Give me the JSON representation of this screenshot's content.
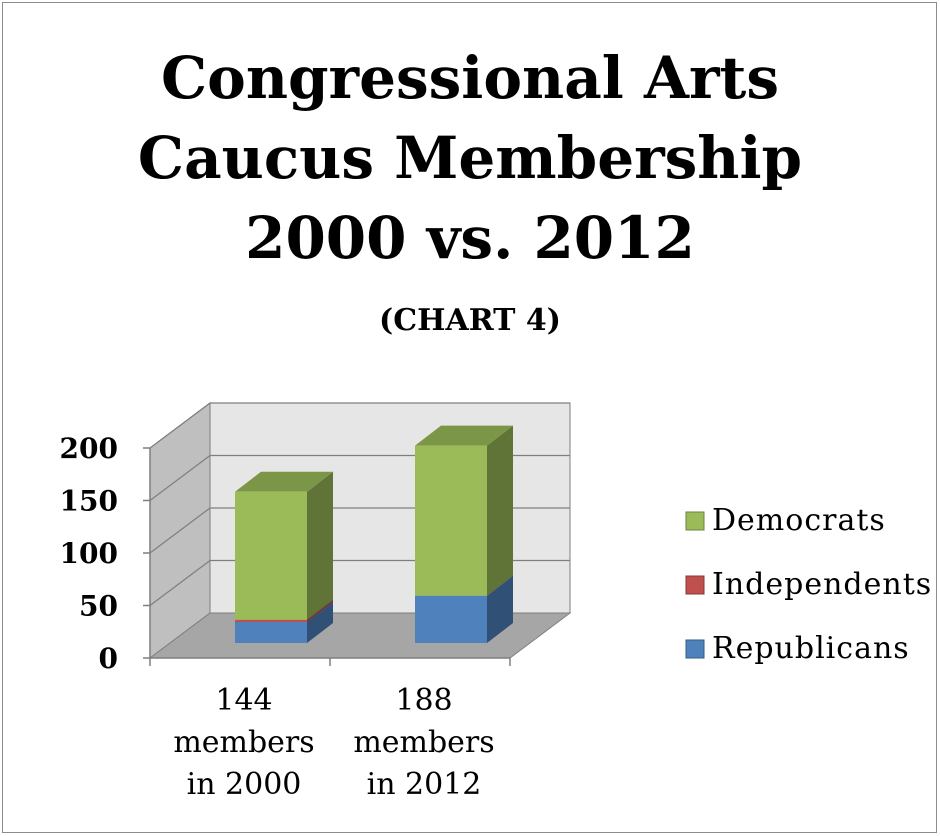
{
  "chart_data": {
    "type": "bar",
    "stacked": true,
    "three_d": true,
    "title_lines": [
      "Congressional Arts",
      "Caucus Membership",
      "2000 vs. 2012"
    ],
    "subtitle": "(CHART 4)",
    "categories": [
      [
        "144",
        "members",
        "in 2000"
      ],
      [
        "188",
        "members",
        "in 2012"
      ]
    ],
    "series": [
      {
        "name": "Republicans",
        "values": [
          20,
          45
        ],
        "color": "#4f81bd"
      },
      {
        "name": "Independents",
        "values": [
          2,
          0
        ],
        "color": "#c0504d"
      },
      {
        "name": "Democrats",
        "values": [
          122,
          143
        ],
        "color": "#9bbb59"
      }
    ],
    "ylim": [
      0,
      200
    ],
    "yticks": [
      "0",
      "50",
      "100",
      "150",
      "200"
    ],
    "grid": true,
    "legend_position": "right",
    "legend_order": [
      "Democrats",
      "Independents",
      "Republicans"
    ]
  }
}
